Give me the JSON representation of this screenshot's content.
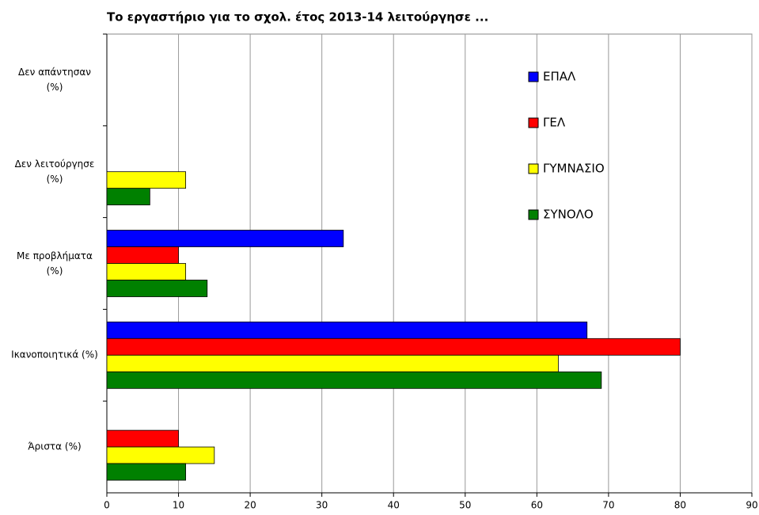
{
  "chart_data": {
    "type": "hbar",
    "title": "Το εργαστήριο για το σχολ. έτος 2013-14 λειτούργησε ...",
    "categories": [
      "Δεν απάντησαν (%)",
      "Δεν λειτούργησε (%)",
      "Με προβλήματα (%)",
      "Ικανοποιητικά (%)",
      "Άριστα (%)"
    ],
    "series": [
      {
        "name": "ΕΠΑΛ",
        "color": "#0000ff",
        "values": [
          0,
          0,
          33,
          67,
          0
        ]
      },
      {
        "name": "ΓΕΛ",
        "color": "#ff0000",
        "values": [
          0,
          0,
          10,
          80,
          10
        ]
      },
      {
        "name": "ΓΥΜΝΑΣΙΟ",
        "color": "#ffff00",
        "values": [
          0,
          11,
          11,
          63,
          15
        ]
      },
      {
        "name": "ΣΥΝΟΛΟ",
        "color": "#008000",
        "values": [
          0,
          6,
          14,
          69,
          11
        ]
      }
    ],
    "xlim": [
      0,
      90
    ],
    "xticks": [
      0,
      10,
      20,
      30,
      40,
      50,
      60,
      70,
      80,
      90
    ],
    "grid": true,
    "legend": "upper right"
  }
}
